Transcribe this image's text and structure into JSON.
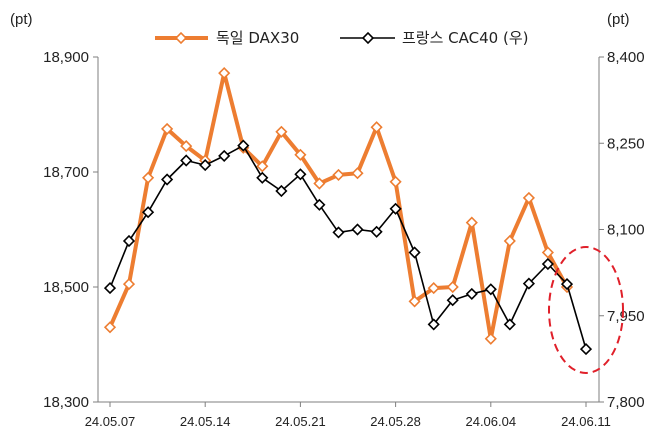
{
  "chart_data": {
    "type": "line",
    "left_unit": "(pt)",
    "right_unit": "(pt)",
    "grid": false,
    "legend_position": "top",
    "x_tick_labels": [
      "24.05.07",
      "24.05.14",
      "24.05.21",
      "24.05.28",
      "24.06.04",
      "24.06.11"
    ],
    "x": [
      "24.05.07",
      "24.05.08",
      "24.05.09",
      "24.05.10",
      "24.05.13",
      "24.05.14",
      "24.05.15",
      "24.05.16",
      "24.05.17",
      "24.05.20",
      "24.05.21",
      "24.05.22",
      "24.05.23",
      "24.05.24",
      "24.05.27",
      "24.05.28",
      "24.05.29",
      "24.05.30",
      "24.05.31",
      "24.06.03",
      "24.06.04",
      "24.06.05",
      "24.06.06",
      "24.06.07",
      "24.06.10",
      "24.06.11"
    ],
    "y_left": {
      "min": 18300,
      "max": 18900,
      "ticks": [
        "18,300",
        "18,500",
        "18,700",
        "18,900"
      ],
      "tick_values": [
        18300,
        18500,
        18700,
        18900
      ]
    },
    "y_right": {
      "min": 7800,
      "max": 8400,
      "ticks": [
        "7,800",
        "7,950",
        "8,100",
        "8,250",
        "8,400"
      ],
      "tick_values": [
        7800,
        7950,
        8100,
        8250,
        8400
      ]
    },
    "series": [
      {
        "name": "독일 DAX30",
        "axis": "left",
        "color": "#ed7d31",
        "marker": "diamond",
        "values": [
          18430,
          18505,
          18690,
          18775,
          18745,
          18720,
          18872,
          18742,
          18710,
          18770,
          18730,
          18680,
          18695,
          18698,
          18778,
          18683,
          18475,
          18498,
          18500,
          18612,
          18410,
          18580,
          18655,
          18560,
          18500,
          null
        ]
      },
      {
        "name": "프랑스 CAC40 (우)",
        "axis": "right",
        "color": "#000000",
        "marker": "diamond",
        "values": [
          7998,
          8080,
          8130,
          8187,
          8220,
          8212,
          8228,
          8246,
          8190,
          8167,
          8196,
          8143,
          8095,
          8100,
          8096,
          8136,
          8060,
          7935,
          7977,
          7988,
          7996,
          7935,
          8006,
          8040,
          8005,
          7892
        ]
      }
    ],
    "annotation": "dashed-red-ellipse-around-last-points"
  }
}
